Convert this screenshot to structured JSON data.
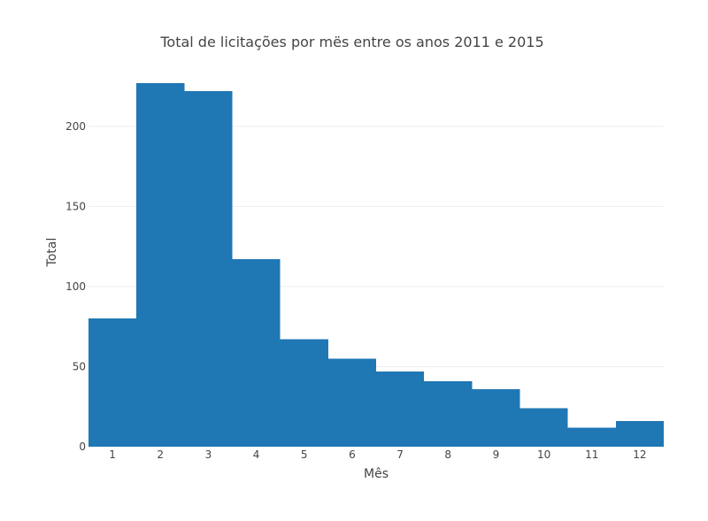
{
  "chart_data": {
    "type": "bar",
    "title": "Total de licitações por mës entre os anos 2011 e 2015",
    "xlabel": "Mês",
    "ylabel": "Total",
    "categories": [
      "1",
      "2",
      "3",
      "4",
      "5",
      "6",
      "7",
      "8",
      "9",
      "10",
      "11",
      "12"
    ],
    "values": [
      80,
      227,
      222,
      117,
      67,
      55,
      47,
      41,
      36,
      24,
      12,
      16
    ],
    "ylim": [
      0,
      238
    ],
    "yticks": [
      0,
      50,
      100,
      150,
      200
    ],
    "grid": true,
    "legend": "none",
    "bar_color": "#1f77b4",
    "bargap": 0
  }
}
